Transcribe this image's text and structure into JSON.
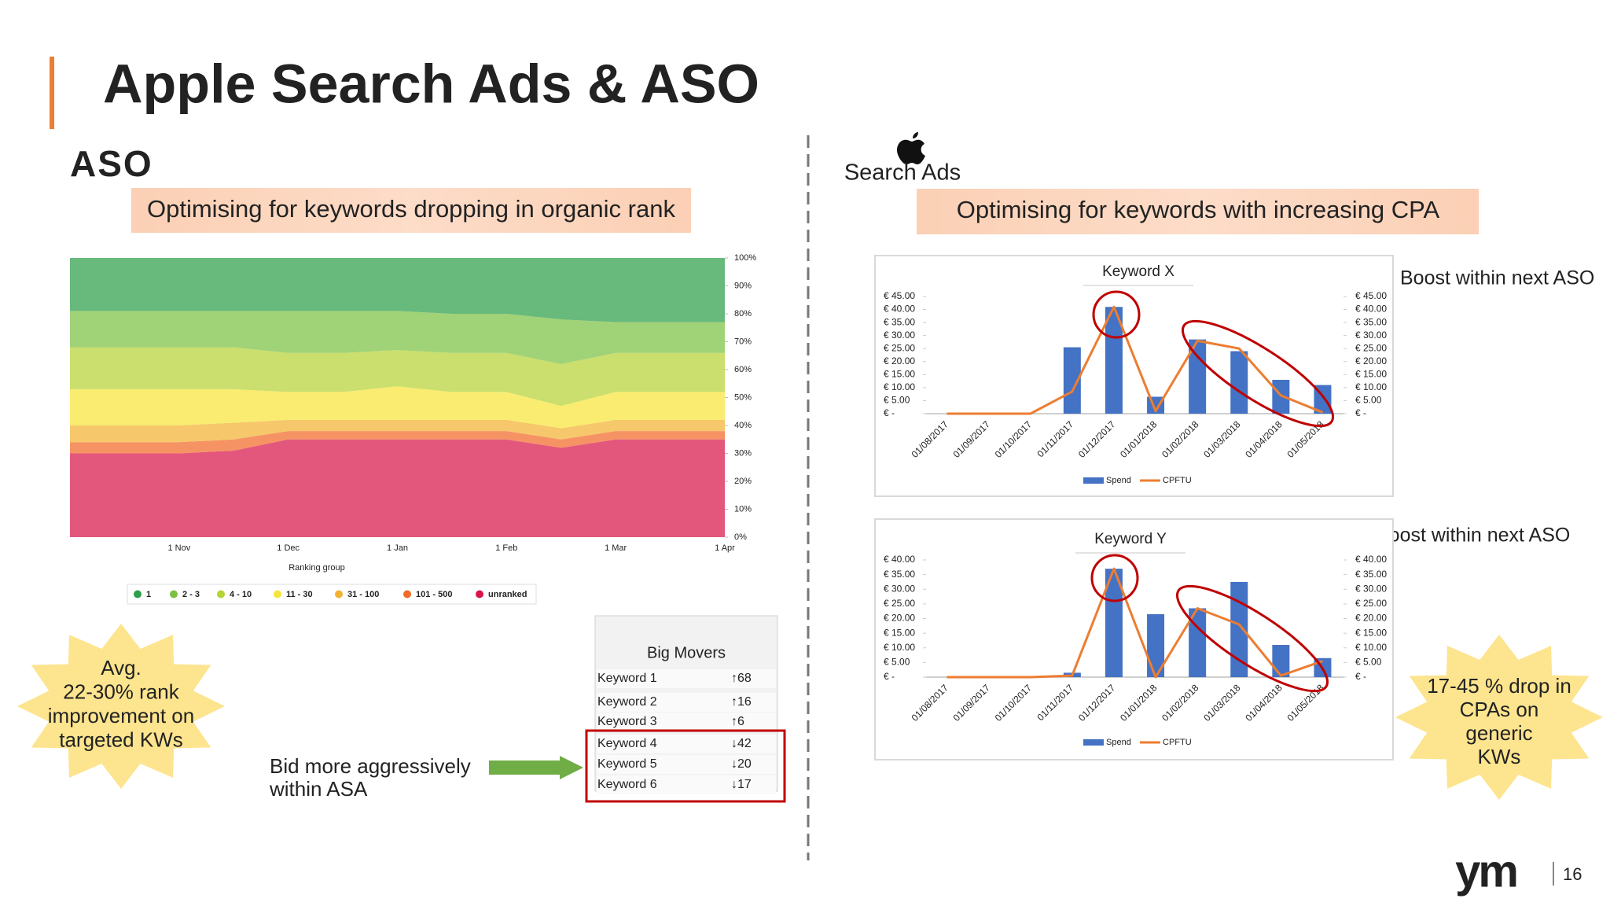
{
  "title": "Apple Search Ads & ASO",
  "aso": {
    "logo": "ASO",
    "banner": "Optimising for keywords dropping in organic rank",
    "x_axis_label": "Ranking group",
    "star": [
      "Avg.",
      "22-30% rank",
      "improvement on",
      "targeted KWs"
    ],
    "callout": [
      "Bid more aggressively",
      "within ASA"
    ],
    "big_movers": {
      "title": "Big Movers",
      "rows": [
        [
          "Keyword 1",
          "↑68"
        ],
        [
          "Keyword 2",
          "↑16"
        ],
        [
          "Keyword 3",
          "↑6"
        ],
        [
          "Keyword 4",
          "↓42"
        ],
        [
          "Keyword 5",
          "↓20"
        ],
        [
          "Keyword 6",
          "↓17"
        ]
      ]
    }
  },
  "search_ads": {
    "logo": "Search Ads",
    "banner": "Optimising for keywords with increasing CPA",
    "callouts": [
      "Boost within next ASO",
      "Boost within next ASO"
    ],
    "star": [
      "17-45 % drop in",
      "CPAs on",
      "generic",
      "KWs"
    ]
  },
  "footer": {
    "logo": "ym",
    "page": "16"
  },
  "chart_data": [
    {
      "type": "area",
      "stacked": true,
      "categories": [
        null,
        null,
        "1 Nov",
        null,
        "1 Dec",
        null,
        "1 Jan",
        null,
        "1 Feb",
        null,
        "1 Mar",
        null,
        "1 Apr"
      ],
      "series": [
        {
          "name": "1",
          "color": "#2e9e49",
          "values": [
            19,
            19,
            19,
            19,
            19,
            19,
            19,
            20,
            20,
            22,
            23,
            23,
            23
          ]
        },
        {
          "name": "2 - 3",
          "color": "#7bc043",
          "values": [
            13,
            13,
            13,
            13,
            15,
            15,
            14,
            14,
            14,
            16,
            11,
            11,
            11
          ]
        },
        {
          "name": "4 - 10",
          "color": "#b5d334",
          "values": [
            15,
            15,
            15,
            15,
            14,
            14,
            13,
            14,
            14,
            15,
            14,
            14,
            14
          ]
        },
        {
          "name": "11 - 30",
          "color": "#f6e43a",
          "values": [
            13,
            13,
            13,
            12,
            10,
            10,
            12,
            10,
            10,
            8,
            10,
            10,
            10
          ]
        },
        {
          "name": "31 - 100",
          "color": "#f3b332",
          "values": [
            6,
            6,
            6,
            6,
            4,
            4,
            4,
            4,
            4,
            4,
            4,
            4,
            4
          ]
        },
        {
          "name": "101 - 500",
          "color": "#f26a2a",
          "values": [
            4,
            4,
            4,
            4,
            3,
            3,
            3,
            3,
            3,
            3,
            3,
            3,
            3
          ]
        },
        {
          "name": "unranked",
          "color": "#d9164b",
          "values": [
            30,
            30,
            30,
            31,
            35,
            35,
            35,
            35,
            35,
            32,
            35,
            35,
            35
          ]
        }
      ],
      "ylim": [
        0,
        100
      ],
      "yticks": [
        {
          "value": 0,
          "label": "0%"
        },
        {
          "value": 10,
          "label": "10%"
        },
        {
          "value": 20,
          "label": "20%"
        },
        {
          "value": 30,
          "label": "30%"
        },
        {
          "value": 40,
          "label": "40%"
        },
        {
          "value": 50,
          "label": "50%"
        },
        {
          "value": 60,
          "label": "60%"
        },
        {
          "value": 70,
          "label": "70%"
        },
        {
          "value": 80,
          "label": "80%"
        },
        {
          "value": 90,
          "label": "90%"
        },
        {
          "value": 100,
          "label": "100%"
        }
      ]
    },
    {
      "type": "combo",
      "title": "Keyword X",
      "categories": [
        "01/08/2017",
        "01/09/2017",
        "01/10/2017",
        "01/11/2017",
        "01/12/2017",
        "01/01/2018",
        "01/02/2018",
        "01/03/2018",
        "01/04/2018",
        "01/05/2018"
      ],
      "series": [
        {
          "name": "Spend",
          "type": "bar",
          "color": "#4472c4",
          "values": [
            0,
            0,
            0,
            25.5,
            41,
            6.5,
            28.5,
            24,
            13,
            11
          ]
        },
        {
          "name": "CPFTU",
          "type": "line",
          "axis": "y2",
          "color": "#ed7d31",
          "values": [
            0,
            0,
            0,
            8.5,
            41,
            1,
            28,
            25,
            7,
            0.5
          ]
        }
      ],
      "ylim": [
        0,
        45
      ],
      "yticks": [
        {
          "value": 0,
          "label": "€ -"
        },
        {
          "value": 5,
          "label": "€ 5.00"
        },
        {
          "value": 10,
          "label": "€ 10.00"
        },
        {
          "value": 15,
          "label": "€ 15.00"
        },
        {
          "value": 20,
          "label": "€ 20.00"
        },
        {
          "value": 25,
          "label": "€ 25.00"
        },
        {
          "value": 30,
          "label": "€ 30.00"
        },
        {
          "value": 35,
          "label": "€ 35.00"
        },
        {
          "value": 40,
          "label": "€ 40.00"
        },
        {
          "value": 45,
          "label": "€ 45.00"
        }
      ],
      "y2lim": [
        0,
        45
      ],
      "y2ticks": [
        {
          "value": 0,
          "label": "€ -"
        },
        {
          "value": 5,
          "label": "€ 5.00"
        },
        {
          "value": 10,
          "label": "€ 10.00"
        },
        {
          "value": 15,
          "label": "€ 15.00"
        },
        {
          "value": 20,
          "label": "€ 20.00"
        },
        {
          "value": 25,
          "label": "€ 25.00"
        },
        {
          "value": 30,
          "label": "€ 30.00"
        },
        {
          "value": 35,
          "label": "€ 35.00"
        },
        {
          "value": 40,
          "label": "€ 40.00"
        },
        {
          "value": 45,
          "label": "€ 45.00"
        }
      ]
    },
    {
      "type": "combo",
      "title": "Keyword Y",
      "categories": [
        "01/08/2017",
        "01/09/2017",
        "01/10/2017",
        "01/11/2017",
        "01/12/2017",
        "01/01/2018",
        "01/02/2018",
        "01/03/2018",
        "01/04/2018",
        "01/05/2018"
      ],
      "series": [
        {
          "name": "Spend",
          "type": "bar",
          "color": "#4472c4",
          "values": [
            0,
            0,
            0,
            1.5,
            37,
            21.5,
            23.5,
            32.5,
            11,
            6.5
          ]
        },
        {
          "name": "CPFTU",
          "type": "line",
          "axis": "y2",
          "color": "#ed7d31",
          "values": [
            0,
            0,
            0,
            0.5,
            37,
            0,
            23.5,
            18,
            0.5,
            5.5
          ]
        }
      ],
      "ylim": [
        0,
        40
      ],
      "yticks": [
        {
          "value": 0,
          "label": "€ -"
        },
        {
          "value": 5,
          "label": "€ 5.00"
        },
        {
          "value": 10,
          "label": "€ 10.00"
        },
        {
          "value": 15,
          "label": "€ 15.00"
        },
        {
          "value": 20,
          "label": "€ 20.00"
        },
        {
          "value": 25,
          "label": "€ 25.00"
        },
        {
          "value": 30,
          "label": "€ 30.00"
        },
        {
          "value": 35,
          "label": "€ 35.00"
        },
        {
          "value": 40,
          "label": "€ 40.00"
        }
      ],
      "y2lim": [
        0,
        40
      ],
      "y2ticks": [
        {
          "value": 0,
          "label": "€ -"
        },
        {
          "value": 5,
          "label": "€ 5.00"
        },
        {
          "value": 10,
          "label": "€ 10.00"
        },
        {
          "value": 15,
          "label": "€ 15.00"
        },
        {
          "value": 20,
          "label": "€ 20.00"
        },
        {
          "value": 25,
          "label": "€ 25.00"
        },
        {
          "value": 30,
          "label": "€ 30.00"
        },
        {
          "value": 35,
          "label": "€ 35.00"
        },
        {
          "value": 40,
          "label": "€ 40.00"
        }
      ]
    }
  ]
}
